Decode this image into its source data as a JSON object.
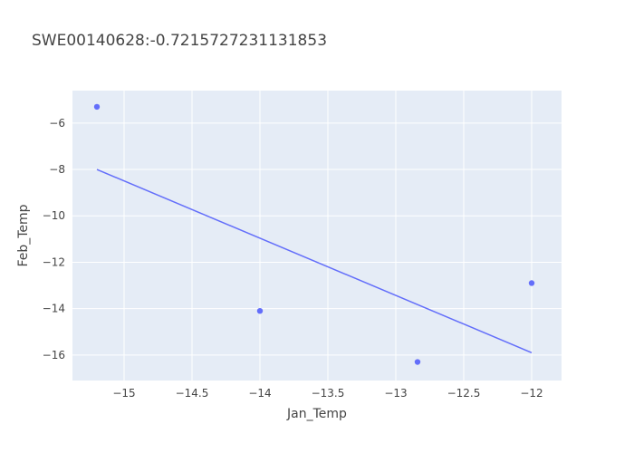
{
  "chart_data": {
    "type": "scatter",
    "title": "SWE00140628:-0.7215727231131853",
    "xlabel": "Jan_Temp",
    "ylabel": "Feb_Temp",
    "xlim": [
      -15.38,
      -11.78
    ],
    "ylim": [
      -17.1,
      -4.6
    ],
    "xticks": [
      -15,
      -14.5,
      -14,
      -13.5,
      -13,
      -12.5,
      -12
    ],
    "xtick_labels": [
      "−15",
      "−14.5",
      "−14",
      "−13.5",
      "−13",
      "−12.5",
      "−12"
    ],
    "yticks": [
      -16,
      -14,
      -12,
      -10,
      -8,
      -6
    ],
    "ytick_labels": [
      "−16",
      "−14",
      "−12",
      "−10",
      "−8",
      "−6"
    ],
    "grid": true,
    "series": [
      {
        "name": "points",
        "mode": "markers",
        "x": [
          -15.2,
          -14.0,
          -12.84,
          -12.0
        ],
        "y": [
          -5.3,
          -14.1,
          -16.3,
          -12.9
        ]
      },
      {
        "name": "trend",
        "mode": "line",
        "x": [
          -15.2,
          -12.0
        ],
        "y": [
          -8.0,
          -15.9
        ]
      }
    ],
    "colors": {
      "plot_bg": "#e5ecf6",
      "grid": "#ffffff",
      "series": "#636efa",
      "text": "#444444"
    }
  }
}
